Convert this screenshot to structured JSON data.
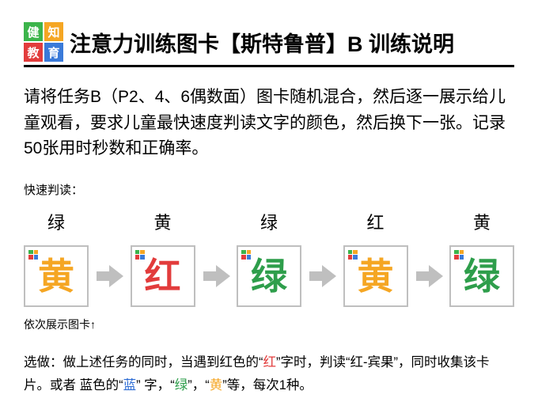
{
  "logo": {
    "tiles": [
      {
        "char": "健",
        "bg": "#3cb44b"
      },
      {
        "char": "知",
        "bg": "#f5a623"
      },
      {
        "char": "教",
        "bg": "#e23c3c"
      },
      {
        "char": "育",
        "bg": "#3a7ad9"
      }
    ]
  },
  "title": "注意力训练图卡【斯特鲁普】B 训练说明",
  "instruction": "请将任务B（P2、4、6偶数面）图卡随机混合，然后逐一展示给儿童观看，要求儿童最快速度判读文字的颜色，然后换下一张。记录50张用时秒数和正确率。",
  "quick_label": "快速判读：",
  "cards": [
    {
      "top": "绿",
      "char": "黄",
      "color": "#f5a623"
    },
    {
      "top": "黄",
      "char": "红",
      "color": "#e23c3c"
    },
    {
      "top": "绿",
      "char": "绿",
      "color": "#2e9e4b"
    },
    {
      "top": "红",
      "char": "黄",
      "color": "#f5a623"
    },
    {
      "top": "黄",
      "char": "绿",
      "color": "#2e9e4b"
    }
  ],
  "corner_colors": [
    "#3cb44b",
    "#f5a623",
    "#e23c3c",
    "#3a7ad9"
  ],
  "sequence_note": "依次展示图卡↑",
  "optional": {
    "prefix": "选做：做上述任务的同时，当遇到红色的",
    "q1": "“",
    "red": "红",
    "q2": "”",
    "mid1": "字时，判读“红-宾果”，同时收集该卡片。或者 蓝色的",
    "blue": "蓝",
    "mid2": " 字，",
    "green": "绿",
    "mid3": "，",
    "yellow": "黄",
    "suffix": "等，每次1种。",
    "colors": {
      "red": "#e23c3c",
      "blue": "#2d6cd4",
      "green": "#2e9e4b",
      "yellow": "#f5a623"
    }
  }
}
